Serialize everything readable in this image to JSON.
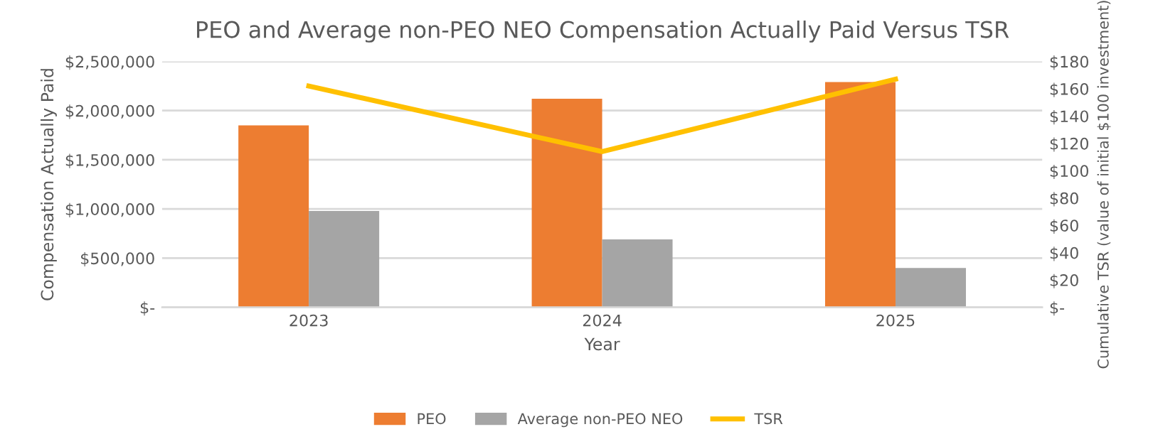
{
  "chart_data": {
    "type": "bar",
    "title": "PEO and Average non-PEO NEO Compensation Actually Paid Versus TSR",
    "xlabel": "Year",
    "ylabel": "Compensation Actually Paid",
    "y2label": "Cumulative TSR (value of initial $100 investment)",
    "categories": [
      "2023",
      "2024",
      "2025"
    ],
    "series": [
      {
        "name": "PEO",
        "color": "#ed7d31",
        "values": [
          1850000,
          2120000,
          2290000
        ]
      },
      {
        "name": "Average non-PEO NEO",
        "color": "#a5a5a5",
        "values": [
          980000,
          690000,
          400000
        ]
      },
      {
        "name": "TSR",
        "type": "line",
        "axis": "y2",
        "color": "#ffc000",
        "values": [
          162,
          114,
          167
        ]
      }
    ],
    "ylim": [
      0,
      2500000
    ],
    "yticks": [
      {
        "value": 0,
        "label": "$-"
      },
      {
        "value": 500000,
        "label": "$500,000"
      },
      {
        "value": 1000000,
        "label": "$1,000,000"
      },
      {
        "value": 1500000,
        "label": "$1,500,000"
      },
      {
        "value": 2000000,
        "label": "$2,000,000"
      },
      {
        "value": 2500000,
        "label": "$2,500,000"
      }
    ],
    "y2lim": [
      0,
      180
    ],
    "y2ticks": [
      {
        "value": 0,
        "label": "$-"
      },
      {
        "value": 20,
        "label": "$20"
      },
      {
        "value": 40,
        "label": "$40"
      },
      {
        "value": 60,
        "label": "$60"
      },
      {
        "value": 80,
        "label": "$80"
      },
      {
        "value": 100,
        "label": "$100"
      },
      {
        "value": 120,
        "label": "$120"
      },
      {
        "value": 140,
        "label": "$140"
      },
      {
        "value": 160,
        "label": "$160"
      },
      {
        "value": 180,
        "label": "$180"
      }
    ],
    "grid": "y",
    "legend": "bottom"
  }
}
